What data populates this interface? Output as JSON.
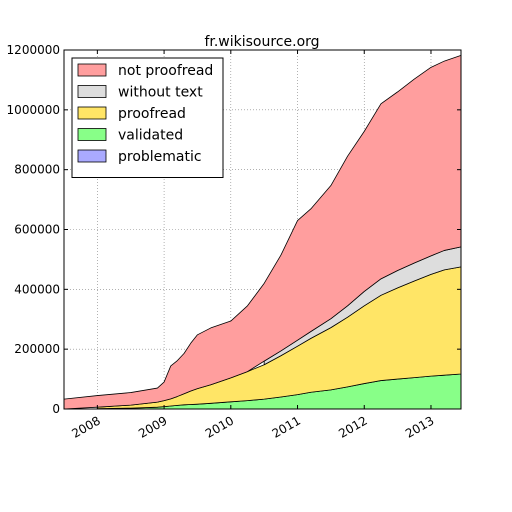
{
  "chart_data": {
    "type": "area",
    "stacked": true,
    "title": "fr.wikisource.org",
    "xlabel": "",
    "ylabel": "",
    "xlim": [
      2007.5,
      2013.45
    ],
    "ylim": [
      0,
      1200000
    ],
    "x_ticks": [
      {
        "value": 2008,
        "label": "2008"
      },
      {
        "value": 2009,
        "label": "2009"
      },
      {
        "value": 2010,
        "label": "2010"
      },
      {
        "value": 2011,
        "label": "2011"
      },
      {
        "value": 2012,
        "label": "2012"
      },
      {
        "value": 2013,
        "label": "2013"
      }
    ],
    "y_ticks": [
      {
        "value": 0,
        "label": "0"
      },
      {
        "value": 200000,
        "label": "200000"
      },
      {
        "value": 400000,
        "label": "400000"
      },
      {
        "value": 600000,
        "label": "600000"
      },
      {
        "value": 800000,
        "label": "800000"
      },
      {
        "value": 1000000,
        "label": "1000000"
      },
      {
        "value": 1200000,
        "label": "1200000"
      }
    ],
    "grid": true,
    "legend_position": "top-left",
    "x": [
      2007.5,
      2008.0,
      2008.5,
      2008.9,
      2009.0,
      2009.1,
      2009.2,
      2009.3,
      2009.4,
      2009.5,
      2009.7,
      2010.0,
      2010.25,
      2010.5,
      2010.75,
      2011.0,
      2011.2,
      2011.5,
      2011.75,
      2012.0,
      2012.25,
      2012.5,
      2012.75,
      2013.0,
      2013.2,
      2013.45
    ],
    "series": [
      {
        "name": "problematic",
        "color": "#aaaaff",
        "values": [
          0,
          0,
          0,
          0,
          0,
          0,
          0,
          0,
          0,
          0,
          0,
          0,
          0,
          0,
          0,
          0,
          0,
          0,
          0,
          0,
          0,
          0,
          0,
          0,
          0,
          0
        ]
      },
      {
        "name": "validated",
        "color": "#88ff88",
        "values": [
          0,
          1000,
          3000,
          6000,
          8000,
          10000,
          12000,
          14000,
          15000,
          16000,
          19000,
          24000,
          28000,
          33000,
          40000,
          48000,
          56000,
          64000,
          74000,
          85000,
          95000,
          100000,
          105000,
          110000,
          113000,
          117000
        ]
      },
      {
        "name": "proofread",
        "color": "#ffe566",
        "values": [
          0,
          5000,
          10000,
          17000,
          20000,
          24000,
          30000,
          37000,
          45000,
          52000,
          62000,
          80000,
          97000,
          115000,
          138000,
          162000,
          180000,
          208000,
          233000,
          260000,
          285000,
          305000,
          323000,
          340000,
          352000,
          358000
        ]
      },
      {
        "name": "without text",
        "color": "#dddddd",
        "values": [
          0,
          0,
          0,
          0,
          0,
          0,
          0,
          0,
          0,
          0,
          0,
          0,
          0,
          12000,
          16000,
          20000,
          23000,
          30000,
          38000,
          48000,
          55000,
          58000,
          60000,
          62000,
          65000,
          67000
        ]
      },
      {
        "name": "not proofread",
        "color": "#ff9e9e",
        "values": [
          33000,
          39000,
          42000,
          47000,
          62000,
          110000,
          120000,
          135000,
          160000,
          180000,
          190000,
          190000,
          220000,
          260000,
          320000,
          400000,
          410000,
          445000,
          500000,
          535000,
          585000,
          597000,
          615000,
          630000,
          633000,
          640000
        ]
      }
    ]
  }
}
